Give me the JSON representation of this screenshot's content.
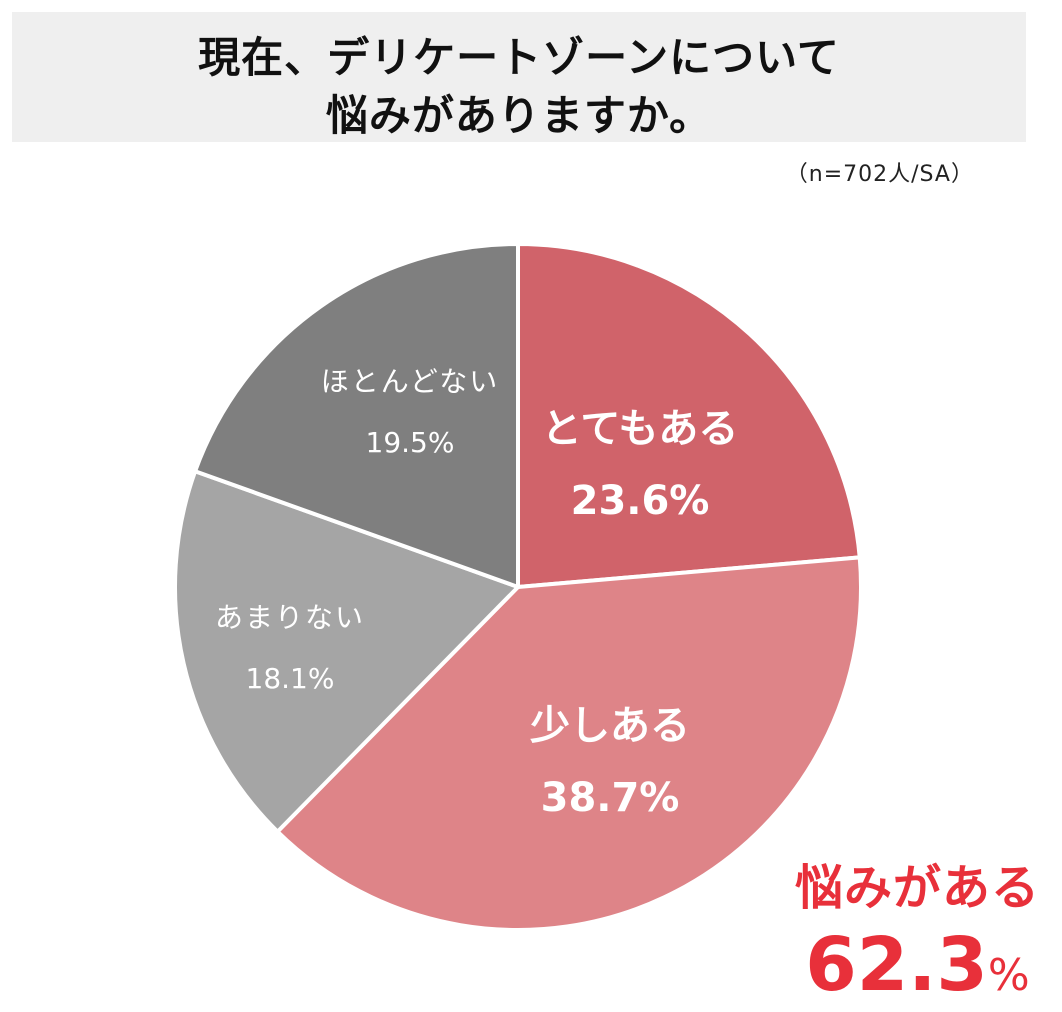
{
  "title": {
    "line1": "現在、デリケートゾーンについて",
    "line2": "悩みがありますか。"
  },
  "sample_note": "（n=702人/SA）",
  "summary": {
    "label": "悩みがある",
    "value": "62.3",
    "unit": "%",
    "color": "#e8303a"
  },
  "chart_data": {
    "type": "pie",
    "start_angle": "12 o'clock",
    "direction": "clockwise",
    "slices": [
      {
        "label": "とてもある",
        "value": 23.6,
        "display": "23.6%",
        "color": "#d0636a"
      },
      {
        "label": "少しある",
        "value": 38.7,
        "display": "38.7%",
        "color": "#de8488"
      },
      {
        "label": "あまりない",
        "value": 18.1,
        "display": "18.1%",
        "color": "#a5a5a5"
      },
      {
        "label": "ほとんどない",
        "value": 19.5,
        "display": "19.5%",
        "color": "#7f7f7f"
      }
    ]
  }
}
